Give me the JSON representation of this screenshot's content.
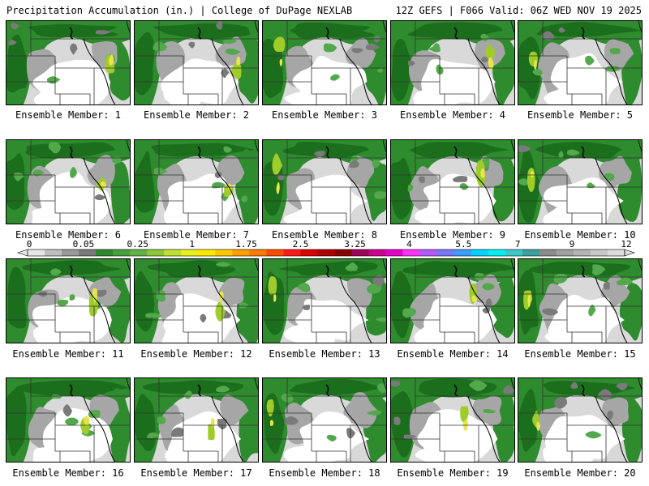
{
  "header": {
    "left": "Precipitation Accumulation (in.) | College of DuPage NEXLAB",
    "right": "12Z GEFS | F066 Valid: 06Z WED NOV 19 2025"
  },
  "colors": {
    "light_gray": "#d9d9d9",
    "mid_gray": "#a6a6a6",
    "dark_gray": "#7a7a7a",
    "light_green": "#52a84a",
    "green": "#2e8b2e",
    "dark_green": "#1b6e1b",
    "yellow_green": "#9fcc28",
    "yellow": "#e6e64a",
    "border": "#000000"
  },
  "colorbar": {
    "labels": [
      "0",
      "0.05",
      "0.25",
      "1",
      "1.75",
      "2.5",
      "3.25",
      "4",
      "5.5",
      "7",
      "9",
      "12"
    ],
    "colors": [
      "#e6e6e6",
      "#bfbfbf",
      "#9a9a9a",
      "#7a7a7a",
      "#2d8a2d",
      "#46a03c",
      "#63b046",
      "#8fc63a",
      "#bfe030",
      "#e8f01e",
      "#ffe800",
      "#ffc800",
      "#ffa000",
      "#ff7a00",
      "#ff4a00",
      "#ff1a1a",
      "#d80000",
      "#b00000",
      "#8a0000",
      "#a0005a",
      "#c8008c",
      "#e600c8",
      "#ff33ff",
      "#b45aff",
      "#7878ff",
      "#3c9cff",
      "#00d2ff",
      "#00eeee",
      "#3cc8c8",
      "#3aa0a0",
      "#8c8c8c",
      "#a0a0a0",
      "#b4b4b4",
      "#c8c8c8",
      "#dcdcdc"
    ]
  },
  "panels": [
    {
      "caption": "Ensemble Member: 1"
    },
    {
      "caption": "Ensemble Member: 2"
    },
    {
      "caption": "Ensemble Member: 3"
    },
    {
      "caption": "Ensemble Member: 4"
    },
    {
      "caption": "Ensemble Member: 5"
    },
    {
      "caption": "Ensemble Member: 6"
    },
    {
      "caption": "Ensemble Member: 7"
    },
    {
      "caption": "Ensemble Member: 8"
    },
    {
      "caption": "Ensemble Member: 9"
    },
    {
      "caption": "Ensemble Member: 10"
    },
    {
      "caption": "Ensemble Member: 11"
    },
    {
      "caption": "Ensemble Member: 12"
    },
    {
      "caption": "Ensemble Member: 13"
    },
    {
      "caption": "Ensemble Member: 14"
    },
    {
      "caption": "Ensemble Member: 15"
    },
    {
      "caption": "Ensemble Member: 16"
    },
    {
      "caption": "Ensemble Member: 17"
    },
    {
      "caption": "Ensemble Member: 18"
    },
    {
      "caption": "Ensemble Member: 19"
    },
    {
      "caption": "Ensemble Member: 20"
    }
  ]
}
